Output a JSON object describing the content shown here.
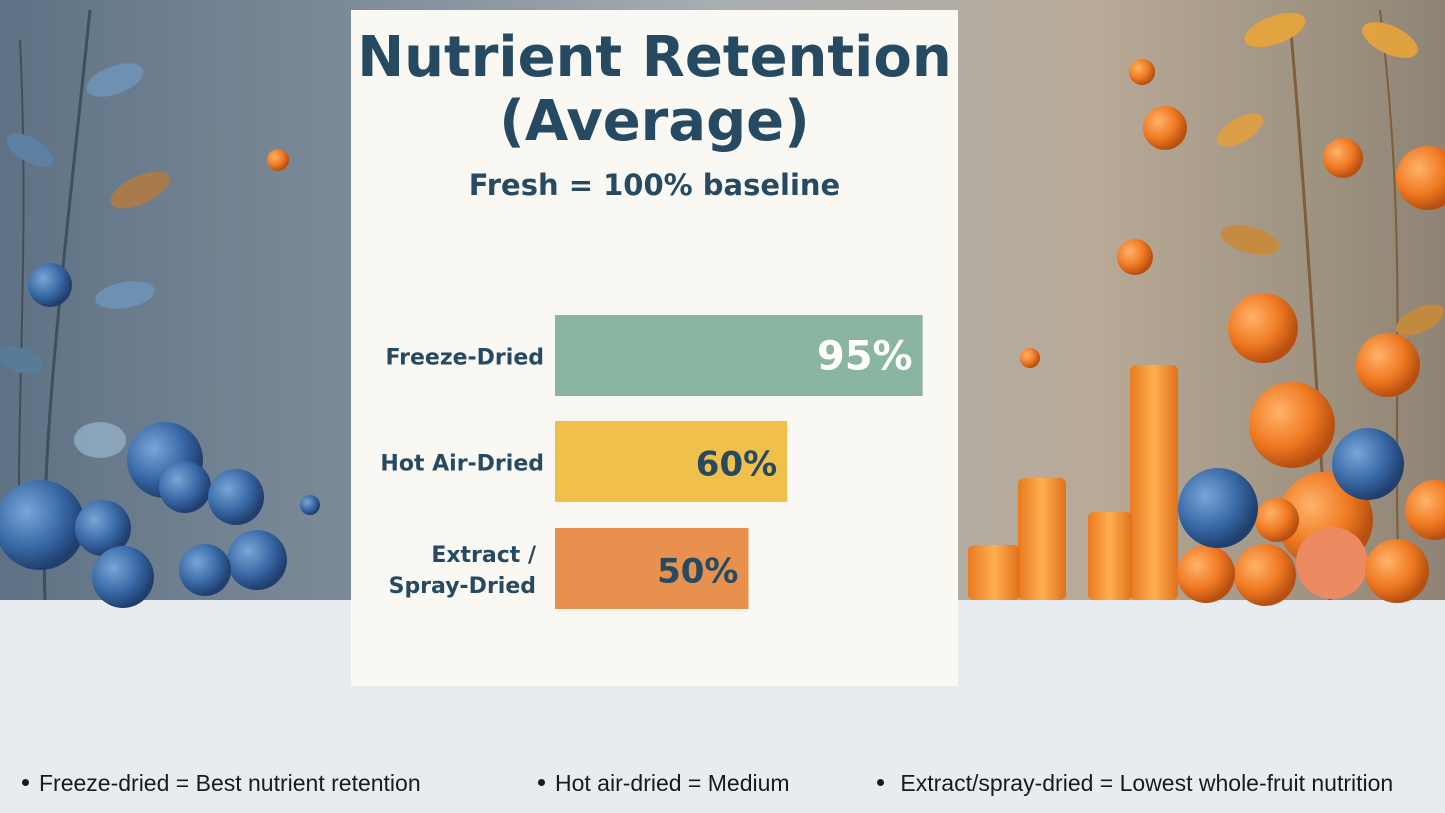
{
  "chart_data": {
    "type": "bar",
    "orientation": "horizontal",
    "title": "Nutrient Retention (Average)",
    "title_lines": [
      "Nutrient Retention",
      "(Average)"
    ],
    "subtitle": "Fresh = 100% baseline",
    "categories": [
      "Freeze-Dried",
      "Hot Air-Dried",
      "Extract / Spray-Dried"
    ],
    "category_lines": [
      [
        "Freeze-Dried"
      ],
      [
        "Hot Air-Dried"
      ],
      [
        "Extract /",
        "Spray-Dried"
      ]
    ],
    "values": [
      95,
      60,
      50
    ],
    "value_labels": [
      "95%",
      "60%",
      "50%"
    ],
    "colors": [
      "#8ab5a0",
      "#f0c04a",
      "#e8914f"
    ],
    "label_colors": [
      "#ffffff",
      "#264a62",
      "#264a62"
    ],
    "xlim": [
      0,
      100
    ],
    "grid": false
  },
  "bullets": [
    "Freeze-dried = Best nutrient retention",
    "Hot air-dried = Medium",
    " Extract/spray-dried = Lowest whole-fruit nutrition"
  ]
}
